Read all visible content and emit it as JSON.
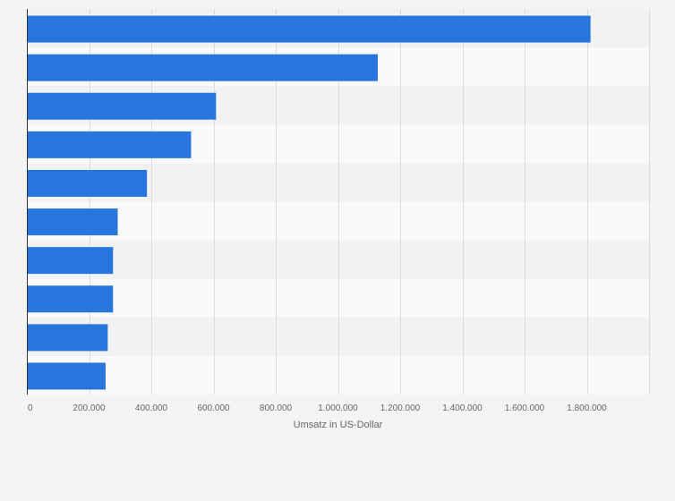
{
  "colors": {
    "background": "#f4f4f4",
    "band_dark": "#f2f2f2",
    "band_light": "#fafafa",
    "bar": "#2876dd",
    "grid": "#dddddd",
    "axis": "#333333",
    "text": "#666666"
  },
  "chart_data": {
    "type": "bar",
    "orientation": "horizontal",
    "categories": [
      "",
      "",
      "",
      "",
      "",
      "",
      "",
      "",
      "",
      ""
    ],
    "values": [
      1812000,
      1128000,
      608000,
      528000,
      386000,
      292000,
      277000,
      277000,
      260000,
      253000
    ],
    "title": "",
    "xlabel": "Umsatz in US-Dollar",
    "ylabel": "",
    "xlim": [
      0,
      2000000
    ],
    "x_ticks": [
      0,
      200000,
      400000,
      600000,
      800000,
      1000000,
      1200000,
      1400000,
      1600000,
      1800000
    ],
    "x_tick_labels": [
      "0",
      "200.000",
      "400.000",
      "600.000",
      "800.000",
      "1.000.000",
      "1.200.000",
      "1.400.000",
      "1.600.000",
      "1.800.000"
    ],
    "grid": true,
    "legend": "none"
  }
}
